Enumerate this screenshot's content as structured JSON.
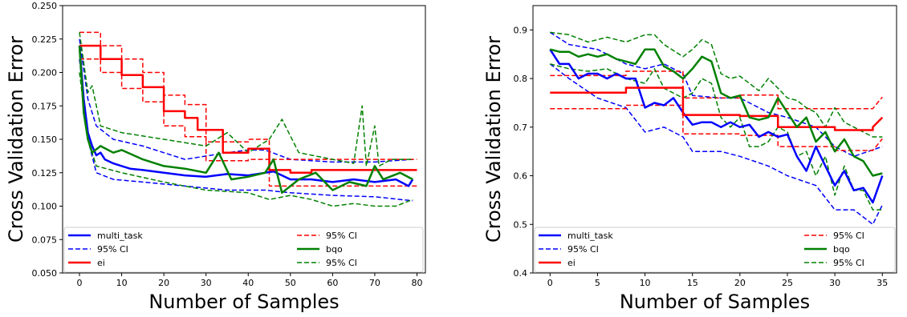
{
  "chart_data": [
    {
      "type": "line",
      "xlabel": "Number of Samples",
      "ylabel": "Cross Validation Error",
      "xlim": [
        -4,
        82
      ],
      "ylim": [
        0.05,
        0.25
      ],
      "xticks": [
        0,
        10,
        20,
        30,
        40,
        50,
        60,
        70,
        80
      ],
      "yticks": [
        0.05,
        0.075,
        0.1,
        0.125,
        0.15,
        0.175,
        0.2,
        0.225,
        0.25
      ],
      "ytick_labels": [
        "0.050",
        "0.075",
        "0.100",
        "0.125",
        "0.150",
        "0.175",
        "0.200",
        "0.225",
        "0.250"
      ],
      "grid": false,
      "legend_placement": "bottom",
      "legend": [
        {
          "label": "multi_task",
          "color": "#0000ff",
          "dash": false
        },
        {
          "label": "95% CI",
          "color": "#0000ff",
          "dash": true
        },
        {
          "label": "ei",
          "color": "#ff0000",
          "dash": false
        },
        {
          "label": "95% CI",
          "color": "#ff0000",
          "dash": true
        },
        {
          "label": "bqo",
          "color": "#008000",
          "dash": false
        },
        {
          "label": "95% CI",
          "color": "#008000",
          "dash": true
        }
      ],
      "series": [
        {
          "name": "multi_task",
          "color": "#0000ff",
          "x": [
            0,
            1,
            2,
            3,
            4,
            5,
            6,
            8,
            10,
            12,
            15,
            20,
            25,
            30,
            35,
            40,
            44,
            46,
            50,
            55,
            60,
            65,
            70,
            75,
            78,
            79
          ],
          "y": [
            0.22,
            0.18,
            0.155,
            0.145,
            0.138,
            0.14,
            0.135,
            0.132,
            0.13,
            0.128,
            0.127,
            0.125,
            0.123,
            0.122,
            0.124,
            0.123,
            0.125,
            0.126,
            0.12,
            0.12,
            0.118,
            0.12,
            0.118,
            0.12,
            0.115,
            0.12
          ]
        },
        {
          "name": "multi_task upper CI",
          "color": "#0000ff",
          "dash": true,
          "x": [
            0,
            2,
            4,
            8,
            15,
            25,
            35,
            40,
            44,
            50,
            60,
            70,
            79
          ],
          "y": [
            0.225,
            0.18,
            0.16,
            0.15,
            0.145,
            0.135,
            0.14,
            0.142,
            0.142,
            0.135,
            0.133,
            0.133,
            0.135
          ]
        },
        {
          "name": "multi_task lower CI",
          "color": "#0000ff",
          "dash": true,
          "x": [
            0,
            2,
            4,
            8,
            15,
            25,
            35,
            44,
            50,
            60,
            70,
            79
          ],
          "y": [
            0.21,
            0.15,
            0.125,
            0.12,
            0.118,
            0.115,
            0.112,
            0.112,
            0.11,
            0.108,
            0.107,
            0.104
          ]
        },
        {
          "name": "ei",
          "color": "#ff0000",
          "x": [
            0,
            5,
            5,
            10,
            10,
            15,
            15,
            20,
            20,
            25,
            25,
            28,
            28,
            34,
            34,
            40,
            40,
            45,
            45,
            50,
            50,
            55,
            55,
            80
          ],
          "y": [
            0.22,
            0.22,
            0.21,
            0.21,
            0.198,
            0.198,
            0.189,
            0.189,
            0.171,
            0.171,
            0.166,
            0.166,
            0.157,
            0.157,
            0.14,
            0.14,
            0.143,
            0.143,
            0.127,
            0.127,
            0.125,
            0.125,
            0.127,
            0.127
          ]
        },
        {
          "name": "ei upper CI",
          "color": "#ff0000",
          "dash": true,
          "x": [
            0,
            5,
            5,
            10,
            10,
            15,
            15,
            20,
            20,
            25,
            25,
            30,
            30,
            40,
            40,
            45,
            45,
            80
          ],
          "y": [
            0.23,
            0.23,
            0.22,
            0.22,
            0.21,
            0.21,
            0.2,
            0.2,
            0.183,
            0.183,
            0.176,
            0.176,
            0.148,
            0.148,
            0.15,
            0.15,
            0.135,
            0.135
          ]
        },
        {
          "name": "ei lower CI",
          "color": "#ff0000",
          "dash": true,
          "x": [
            0,
            5,
            5,
            10,
            10,
            15,
            15,
            20,
            20,
            25,
            25,
            30,
            30,
            40,
            40,
            45,
            45,
            80
          ],
          "y": [
            0.21,
            0.21,
            0.2,
            0.2,
            0.188,
            0.188,
            0.178,
            0.178,
            0.16,
            0.16,
            0.152,
            0.152,
            0.134,
            0.134,
            0.135,
            0.135,
            0.115,
            0.115
          ]
        },
        {
          "name": "bqo",
          "color": "#008000",
          "x": [
            0,
            1,
            2,
            3,
            5,
            8,
            10,
            15,
            20,
            25,
            30,
            33,
            36,
            40,
            44,
            46,
            48,
            52,
            56,
            60,
            64,
            68,
            70,
            72,
            76,
            79
          ],
          "y": [
            0.22,
            0.17,
            0.15,
            0.14,
            0.145,
            0.14,
            0.142,
            0.135,
            0.13,
            0.128,
            0.125,
            0.14,
            0.12,
            0.122,
            0.125,
            0.135,
            0.11,
            0.12,
            0.125,
            0.112,
            0.118,
            0.115,
            0.13,
            0.12,
            0.125,
            0.12
          ]
        },
        {
          "name": "bqo upper CI",
          "color": "#008000",
          "dash": true,
          "x": [
            0,
            2,
            3,
            5,
            10,
            20,
            30,
            35,
            40,
            45,
            48,
            52,
            60,
            65,
            67,
            68,
            70,
            71,
            74,
            79
          ],
          "y": [
            0.23,
            0.185,
            0.19,
            0.16,
            0.155,
            0.15,
            0.145,
            0.155,
            0.14,
            0.15,
            0.165,
            0.14,
            0.135,
            0.132,
            0.175,
            0.13,
            0.16,
            0.13,
            0.135,
            0.135
          ]
        },
        {
          "name": "bqo lower CI",
          "color": "#008000",
          "dash": true,
          "x": [
            0,
            2,
            4,
            10,
            20,
            30,
            40,
            45,
            50,
            55,
            60,
            65,
            70,
            75,
            79
          ],
          "y": [
            0.2,
            0.15,
            0.13,
            0.125,
            0.118,
            0.112,
            0.11,
            0.105,
            0.108,
            0.105,
            0.1,
            0.102,
            0.1,
            0.1,
            0.105
          ]
        }
      ]
    },
    {
      "type": "line",
      "xlabel": "Number of Samples",
      "ylabel": "Cross Validation Error",
      "xlim": [
        -1.8,
        36.5
      ],
      "ylim": [
        0.4,
        0.95
      ],
      "xticks": [
        0,
        5,
        10,
        15,
        20,
        25,
        30,
        35
      ],
      "yticks": [
        0.4,
        0.5,
        0.6,
        0.7,
        0.8,
        0.9
      ],
      "ytick_labels": [
        "0.4",
        "0.5",
        "0.6",
        "0.7",
        "0.8",
        "0.9"
      ],
      "grid": false,
      "legend_placement": "bottom",
      "legend": [
        {
          "label": "multi_task",
          "color": "#0000ff",
          "dash": false
        },
        {
          "label": "95% CI",
          "color": "#0000ff",
          "dash": true
        },
        {
          "label": "ei",
          "color": "#ff0000",
          "dash": false
        },
        {
          "label": "95% CI",
          "color": "#ff0000",
          "dash": true
        },
        {
          "label": "bqo",
          "color": "#008000",
          "dash": false
        },
        {
          "label": "95% CI",
          "color": "#008000",
          "dash": true
        }
      ],
      "series": [
        {
          "name": "multi_task",
          "color": "#0000ff",
          "x": [
            0,
            1,
            2,
            3,
            4,
            5,
            6,
            7,
            8,
            9,
            10,
            11,
            12,
            13,
            14,
            15,
            16,
            17,
            18,
            19,
            20,
            21,
            22,
            23,
            24,
            25,
            26,
            27,
            28,
            29,
            30,
            31,
            32,
            33,
            34,
            35
          ],
          "y": [
            0.86,
            0.83,
            0.83,
            0.8,
            0.81,
            0.81,
            0.8,
            0.81,
            0.8,
            0.8,
            0.74,
            0.75,
            0.745,
            0.76,
            0.73,
            0.705,
            0.71,
            0.71,
            0.7,
            0.71,
            0.7,
            0.705,
            0.68,
            0.69,
            0.68,
            0.685,
            0.64,
            0.61,
            0.66,
            0.62,
            0.58,
            0.61,
            0.57,
            0.575,
            0.545,
            0.6
          ]
        },
        {
          "name": "multi_task upper CI",
          "color": "#0000ff",
          "dash": true,
          "x": [
            0,
            2,
            5,
            8,
            10,
            12,
            14,
            15,
            18,
            20,
            23,
            25,
            28,
            30,
            32,
            35
          ],
          "y": [
            0.895,
            0.87,
            0.86,
            0.83,
            0.82,
            0.83,
            0.81,
            0.765,
            0.76,
            0.76,
            0.73,
            0.72,
            0.7,
            0.66,
            0.64,
            0.66
          ]
        },
        {
          "name": "multi_task lower CI",
          "color": "#0000ff",
          "dash": true,
          "x": [
            0,
            2,
            5,
            8,
            10,
            12,
            14,
            15,
            18,
            20,
            23,
            25,
            28,
            30,
            32,
            34,
            35
          ],
          "y": [
            0.83,
            0.8,
            0.76,
            0.74,
            0.69,
            0.7,
            0.68,
            0.65,
            0.65,
            0.64,
            0.62,
            0.6,
            0.58,
            0.53,
            0.53,
            0.5,
            0.54
          ]
        },
        {
          "name": "ei",
          "color": "#ff0000",
          "x": [
            0,
            8,
            8,
            14,
            14,
            20,
            20,
            24,
            24,
            30,
            30,
            34,
            34,
            35
          ],
          "y": [
            0.771,
            0.771,
            0.781,
            0.781,
            0.725,
            0.725,
            0.723,
            0.723,
            0.7,
            0.7,
            0.694,
            0.694,
            0.7,
            0.72
          ]
        },
        {
          "name": "ei upper CI",
          "color": "#ff0000",
          "dash": true,
          "x": [
            0,
            8,
            8,
            14,
            14,
            20,
            20,
            24,
            24,
            34,
            34,
            35
          ],
          "y": [
            0.806,
            0.806,
            0.815,
            0.815,
            0.76,
            0.76,
            0.766,
            0.766,
            0.738,
            0.738,
            0.738,
            0.762
          ]
        },
        {
          "name": "ei lower CI",
          "color": "#ff0000",
          "dash": true,
          "x": [
            0,
            8,
            8,
            14,
            14,
            20,
            20,
            24,
            24,
            30,
            30,
            34,
            34,
            35
          ],
          "y": [
            0.738,
            0.738,
            0.745,
            0.745,
            0.686,
            0.686,
            0.683,
            0.683,
            0.66,
            0.66,
            0.652,
            0.652,
            0.652,
            0.676
          ]
        },
        {
          "name": "bqo",
          "color": "#008000",
          "x": [
            0,
            1,
            2,
            3,
            4,
            5,
            6,
            7,
            8,
            9,
            10,
            11,
            12,
            13,
            14,
            15,
            16,
            17,
            18,
            19,
            20,
            21,
            22,
            23,
            24,
            25,
            26,
            27,
            28,
            29,
            30,
            31,
            32,
            33,
            34,
            35
          ],
          "y": [
            0.86,
            0.855,
            0.855,
            0.845,
            0.85,
            0.845,
            0.85,
            0.84,
            0.835,
            0.83,
            0.86,
            0.86,
            0.825,
            0.815,
            0.8,
            0.82,
            0.845,
            0.835,
            0.77,
            0.76,
            0.765,
            0.72,
            0.715,
            0.72,
            0.76,
            0.73,
            0.7,
            0.72,
            0.67,
            0.69,
            0.65,
            0.675,
            0.64,
            0.63,
            0.6,
            0.605
          ]
        },
        {
          "name": "bqo upper CI",
          "color": "#008000",
          "dash": true,
          "x": [
            0,
            2,
            4,
            6,
            8,
            10,
            11,
            12,
            14,
            15,
            16,
            17,
            18,
            19,
            20,
            21,
            22,
            23,
            24,
            25,
            26,
            27,
            28,
            29,
            30,
            31,
            32,
            33,
            34,
            35
          ],
          "y": [
            0.895,
            0.89,
            0.875,
            0.885,
            0.875,
            0.89,
            0.89,
            0.87,
            0.845,
            0.86,
            0.88,
            0.87,
            0.81,
            0.8,
            0.805,
            0.79,
            0.775,
            0.8,
            0.78,
            0.76,
            0.755,
            0.74,
            0.73,
            0.7,
            0.74,
            0.71,
            0.7,
            0.69,
            0.68,
            0.68
          ]
        },
        {
          "name": "bqo lower CI",
          "color": "#008000",
          "dash": true,
          "x": [
            0,
            2,
            4,
            6,
            8,
            10,
            11,
            12,
            14,
            15,
            16,
            17,
            18,
            19,
            20,
            21,
            22,
            23,
            24,
            25,
            26,
            27,
            28,
            29,
            30,
            31,
            32,
            33,
            34,
            35
          ],
          "y": [
            0.83,
            0.82,
            0.815,
            0.82,
            0.8,
            0.79,
            0.82,
            0.78,
            0.76,
            0.77,
            0.8,
            0.79,
            0.72,
            0.7,
            0.72,
            0.66,
            0.66,
            0.67,
            0.7,
            0.69,
            0.64,
            0.65,
            0.6,
            0.64,
            0.56,
            0.62,
            0.57,
            0.57,
            0.53,
            0.53
          ]
        }
      ]
    }
  ]
}
